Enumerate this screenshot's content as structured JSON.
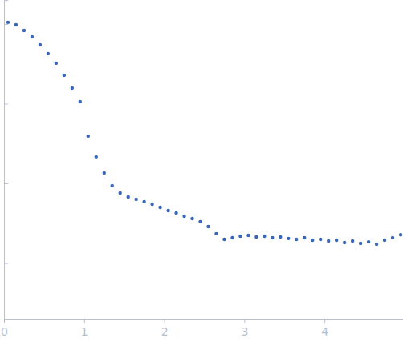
{
  "chart_data": {
    "type": "scatter",
    "log": "y",
    "tick_labels": "x",
    "color": "#3a66b5",
    "marker": "circle",
    "xlim": [
      0,
      4.98
    ],
    "xticks": [
      0,
      1,
      2,
      3,
      4
    ],
    "ylim": [
      0.0002,
      2
    ],
    "yticks": [
      1,
      0.1,
      0.01,
      0.001
    ],
    "x": [
      0.05,
      0.15,
      0.25,
      0.35,
      0.45,
      0.55,
      0.65,
      0.75,
      0.85,
      0.95,
      1.05,
      1.15,
      1.25,
      1.35,
      1.45,
      1.55,
      1.65,
      1.75,
      1.85,
      1.95,
      2.05,
      2.15,
      2.25,
      2.35,
      2.45,
      2.55,
      2.65,
      2.75,
      2.85,
      2.95,
      3.05,
      3.15,
      3.25,
      3.35,
      3.45,
      3.55,
      3.65,
      3.75,
      3.85,
      3.95,
      4.05,
      4.15,
      4.25,
      4.35,
      4.45,
      4.55,
      4.65,
      4.75,
      4.85,
      4.95
    ],
    "values": [
      1.05,
      0.977,
      0.831,
      0.69,
      0.548,
      0.425,
      0.322,
      0.227,
      0.157,
      0.106,
      0.0392,
      0.0215,
      0.0135,
      0.00933,
      0.00757,
      0.00675,
      0.0063,
      0.00588,
      0.00548,
      0.00499,
      0.00455,
      0.00425,
      0.00387,
      0.00361,
      0.0033,
      0.00286,
      0.00233,
      0.00198,
      0.00207,
      0.00217,
      0.00222,
      0.00212,
      0.00217,
      0.00207,
      0.00212,
      0.00203,
      0.00198,
      0.00207,
      0.00193,
      0.00198,
      0.00189,
      0.00193,
      0.0018,
      0.00189,
      0.00176,
      0.00184,
      0.00172,
      0.00193,
      0.00207,
      0.00226
    ]
  }
}
